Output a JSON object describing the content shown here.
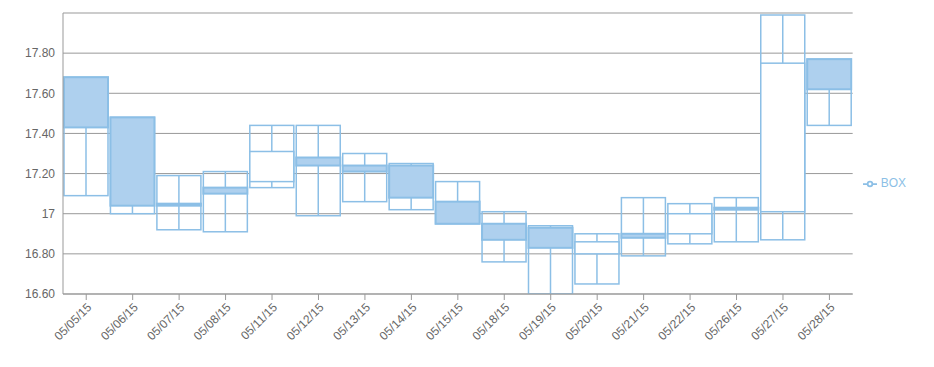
{
  "chart_data": {
    "type": "box",
    "categories": [
      "05/05/15",
      "05/06/15",
      "05/07/15",
      "05/08/15",
      "05/11/15",
      "05/12/15",
      "05/13/15",
      "05/14/15",
      "05/15/15",
      "05/18/15",
      "05/19/15",
      "05/20/15",
      "05/21/15",
      "05/22/15",
      "05/26/15",
      "05/27/15",
      "05/28/15"
    ],
    "series": [
      {
        "name": "BOX",
        "color": "#8cbfe6",
        "low": [
          17.09,
          17.0,
          16.92,
          16.91,
          17.13,
          16.99,
          17.06,
          17.02,
          16.95,
          16.76,
          16.6,
          16.65,
          16.79,
          16.85,
          16.86,
          16.87,
          17.44
        ],
        "high": [
          17.68,
          17.48,
          17.19,
          17.21,
          17.44,
          17.44,
          17.3,
          17.25,
          17.16,
          17.01,
          16.94,
          16.9,
          17.08,
          17.05,
          17.08,
          17.99,
          17.77
        ],
        "open": [
          17.68,
          17.48,
          17.05,
          17.13,
          17.16,
          17.28,
          17.24,
          17.24,
          17.06,
          16.95,
          16.93,
          16.8,
          16.9,
          16.9,
          17.03,
          17.01,
          17.77
        ],
        "close": [
          17.43,
          17.04,
          17.04,
          17.1,
          17.31,
          17.24,
          17.21,
          17.08,
          16.95,
          16.87,
          16.83,
          16.86,
          16.88,
          17.0,
          17.02,
          17.75,
          17.62
        ]
      }
    ],
    "ylim": [
      16.6,
      18.0
    ],
    "yticks": [
      {
        "value": 16.6,
        "label": "16.60"
      },
      {
        "value": 16.8,
        "label": "16.80"
      },
      17,
      {
        "value": 17.2,
        "label": "17.20"
      },
      {
        "value": 17.4,
        "label": "17.40"
      },
      {
        "value": 17.6,
        "label": "17.60"
      },
      {
        "value": 17.8,
        "label": "17.80"
      }
    ],
    "grid": true,
    "legend": "right"
  }
}
